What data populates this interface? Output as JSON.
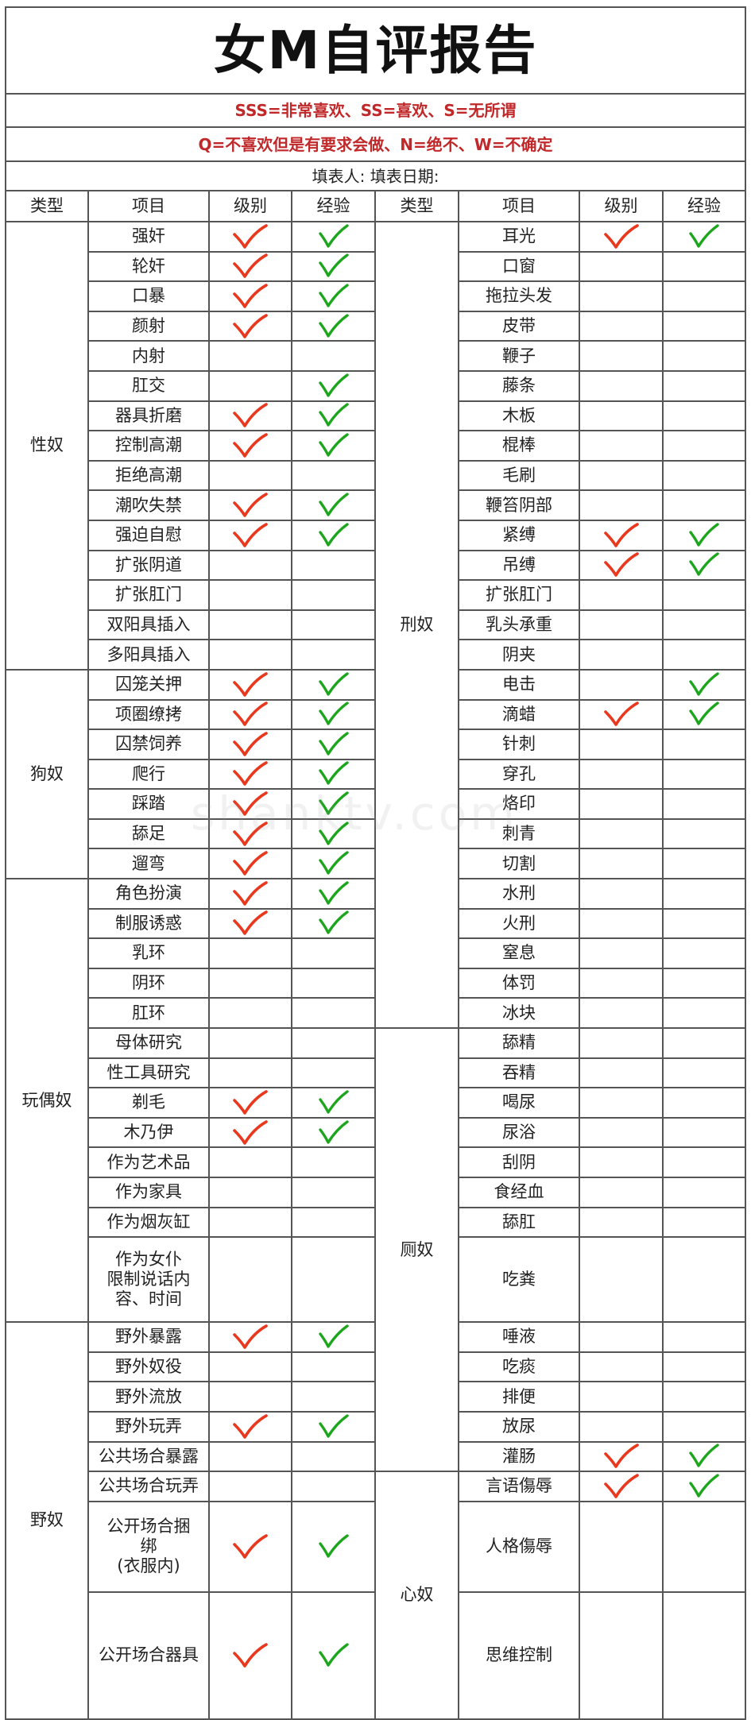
{
  "title": "女M自评报告",
  "legend_line1": "SSS=非常喜欢、SS=喜欢、S=无所谓",
  "legend_line2": "Q=不喜欢但是有要求会做、N=绝不、W=不确定",
  "filler_line": "填表人: 填表日期:",
  "headers": [
    "类型",
    "项目",
    "级别",
    "经验",
    "类型",
    "项目",
    "级别",
    "经验"
  ],
  "colors": {
    "level_mark": "#e8391f",
    "experience_mark": "#1ea51e",
    "legend_text": "#c0282a"
  },
  "watermark": "shanktv.com",
  "left_groups": [
    {
      "label": "性奴",
      "start": 0,
      "span": 15
    },
    {
      "label": "狗奴",
      "start": 15,
      "span": 7
    },
    {
      "label": "玩偶奴",
      "start": 22,
      "span": 13
    },
    {
      "label": "野奴",
      "start": 35,
      "span": 8
    }
  ],
  "right_groups": [
    {
      "label": "刑奴",
      "start": 0,
      "span": 27
    },
    {
      "label": "厕奴",
      "start": 27,
      "span": 13
    },
    {
      "label": "心奴",
      "start": 40,
      "span": 3
    }
  ],
  "rows": [
    {
      "l": {
        "item": "强奸",
        "level": true,
        "exp": true
      },
      "r": {
        "item": "耳光",
        "level": true,
        "exp": true
      }
    },
    {
      "l": {
        "item": "轮奸",
        "level": true,
        "exp": true
      },
      "r": {
        "item": "口窗",
        "level": false,
        "exp": false
      }
    },
    {
      "l": {
        "item": "口暴",
        "level": true,
        "exp": true
      },
      "r": {
        "item": "拖拉头发",
        "level": false,
        "exp": false
      }
    },
    {
      "l": {
        "item": "颜射",
        "level": true,
        "exp": true
      },
      "r": {
        "item": "皮带",
        "level": false,
        "exp": false
      }
    },
    {
      "l": {
        "item": "内射",
        "level": false,
        "exp": false
      },
      "r": {
        "item": "鞭子",
        "level": false,
        "exp": false
      }
    },
    {
      "l": {
        "item": "肛交",
        "level": false,
        "exp": true
      },
      "r": {
        "item": "藤条",
        "level": false,
        "exp": false
      }
    },
    {
      "l": {
        "item": "器具折磨",
        "level": true,
        "exp": true
      },
      "r": {
        "item": "木板",
        "level": false,
        "exp": false
      }
    },
    {
      "l": {
        "item": "控制高潮",
        "level": true,
        "exp": true
      },
      "r": {
        "item": "棍棒",
        "level": false,
        "exp": false
      }
    },
    {
      "l": {
        "item": "拒绝高潮",
        "level": false,
        "exp": false
      },
      "r": {
        "item": "毛刷",
        "level": false,
        "exp": false
      }
    },
    {
      "l": {
        "item": "潮吹失禁",
        "level": true,
        "exp": true
      },
      "r": {
        "item": "鞭笞阴部",
        "level": false,
        "exp": false
      }
    },
    {
      "l": {
        "item": "强迫自慰",
        "level": true,
        "exp": true
      },
      "r": {
        "item": "紧缚",
        "level": true,
        "exp": true
      }
    },
    {
      "l": {
        "item": "扩张阴道",
        "level": false,
        "exp": false
      },
      "r": {
        "item": "吊缚",
        "level": true,
        "exp": true
      }
    },
    {
      "l": {
        "item": "扩张肛门",
        "level": false,
        "exp": false
      },
      "r": {
        "item": "扩张肛门",
        "level": false,
        "exp": false
      }
    },
    {
      "l": {
        "item": "双阳具插入",
        "level": false,
        "exp": false
      },
      "r": {
        "item": "乳头承重",
        "level": false,
        "exp": false
      }
    },
    {
      "l": {
        "item": "多阳具插入",
        "level": false,
        "exp": false
      },
      "r": {
        "item": "阴夹",
        "level": false,
        "exp": false
      }
    },
    {
      "l": {
        "item": "囚笼关押",
        "level": true,
        "exp": true
      },
      "r": {
        "item": "电击",
        "level": false,
        "exp": true
      }
    },
    {
      "l": {
        "item": "项圈缭拷",
        "level": true,
        "exp": true
      },
      "r": {
        "item": "滴蜡",
        "level": true,
        "exp": true
      }
    },
    {
      "l": {
        "item": "囚禁饲养",
        "level": true,
        "exp": true
      },
      "r": {
        "item": "针刺",
        "level": false,
        "exp": false
      }
    },
    {
      "l": {
        "item": "爬行",
        "level": true,
        "exp": true
      },
      "r": {
        "item": "穿孔",
        "level": false,
        "exp": false
      }
    },
    {
      "l": {
        "item": "踩踏",
        "level": true,
        "exp": true
      },
      "r": {
        "item": "烙印",
        "level": false,
        "exp": false
      }
    },
    {
      "l": {
        "item": "舔足",
        "level": true,
        "exp": true
      },
      "r": {
        "item": "刺青",
        "level": false,
        "exp": false
      }
    },
    {
      "l": {
        "item": "遛弯",
        "level": true,
        "exp": true
      },
      "r": {
        "item": "切割",
        "level": false,
        "exp": false
      }
    },
    {
      "l": {
        "item": "角色扮演",
        "level": true,
        "exp": true
      },
      "r": {
        "item": "水刑",
        "level": false,
        "exp": false
      }
    },
    {
      "l": {
        "item": "制服诱惑",
        "level": true,
        "exp": true
      },
      "r": {
        "item": "火刑",
        "level": false,
        "exp": false
      }
    },
    {
      "l": {
        "item": "乳环",
        "level": false,
        "exp": false
      },
      "r": {
        "item": "窒息",
        "level": false,
        "exp": false
      }
    },
    {
      "l": {
        "item": "阴环",
        "level": false,
        "exp": false
      },
      "r": {
        "item": "体罚",
        "level": false,
        "exp": false
      }
    },
    {
      "l": {
        "item": "肛环",
        "level": false,
        "exp": false
      },
      "r": {
        "item": "冰块",
        "level": false,
        "exp": false
      }
    },
    {
      "l": {
        "item": "母体研究",
        "level": false,
        "exp": false
      },
      "r": {
        "item": "舔精",
        "level": false,
        "exp": false
      }
    },
    {
      "l": {
        "item": "性工具研究",
        "level": false,
        "exp": false
      },
      "r": {
        "item": "吞精",
        "level": false,
        "exp": false
      }
    },
    {
      "l": {
        "item": "剃毛",
        "level": true,
        "exp": true
      },
      "r": {
        "item": "喝尿",
        "level": false,
        "exp": false
      }
    },
    {
      "l": {
        "item": "木乃伊",
        "level": true,
        "exp": true
      },
      "r": {
        "item": "尿浴",
        "level": false,
        "exp": false
      }
    },
    {
      "l": {
        "item": "作为艺术品",
        "level": false,
        "exp": false
      },
      "r": {
        "item": "刮阴",
        "level": false,
        "exp": false
      }
    },
    {
      "l": {
        "item": "作为家具",
        "level": false,
        "exp": false
      },
      "r": {
        "item": "食经血",
        "level": false,
        "exp": false
      }
    },
    {
      "l": {
        "item": "作为烟灰缸",
        "level": false,
        "exp": false
      },
      "r": {
        "item": "舔肛",
        "level": false,
        "exp": false
      }
    },
    {
      "l": {
        "item": "作为女仆\n限制说话内\n容、时间",
        "level": false,
        "exp": false
      },
      "r": {
        "item": "吃粪",
        "level": false,
        "exp": false
      }
    },
    {
      "l": {
        "item": "野外暴露",
        "level": true,
        "exp": true
      },
      "r": {
        "item": "唾液",
        "level": false,
        "exp": false
      }
    },
    {
      "l": {
        "item": "野外奴役",
        "level": false,
        "exp": false
      },
      "r": {
        "item": "吃痰",
        "level": false,
        "exp": false
      }
    },
    {
      "l": {
        "item": "野外流放",
        "level": false,
        "exp": false
      },
      "r": {
        "item": "排便",
        "level": false,
        "exp": false
      }
    },
    {
      "l": {
        "item": "野外玩弄",
        "level": true,
        "exp": true
      },
      "r": {
        "item": "放尿",
        "level": false,
        "exp": false
      }
    },
    {
      "l": {
        "item": "公共场合暴露",
        "level": false,
        "exp": false
      },
      "r": {
        "item": "灌肠",
        "level": true,
        "exp": true
      }
    },
    {
      "l": {
        "item": "公共场合玩弄",
        "level": false,
        "exp": false
      },
      "r": {
        "item": "言语傷辱",
        "level": true,
        "exp": true
      }
    },
    {
      "l": {
        "item": "公开场合捆\n绑\n(衣服内)",
        "level": true,
        "exp": true
      },
      "r": {
        "item": "人格傷辱",
        "level": false,
        "exp": false
      }
    },
    {
      "l": {
        "item": "公开场合器具",
        "level": true,
        "exp": true
      },
      "r": {
        "item": "思维控制",
        "level": false,
        "exp": false
      }
    }
  ]
}
